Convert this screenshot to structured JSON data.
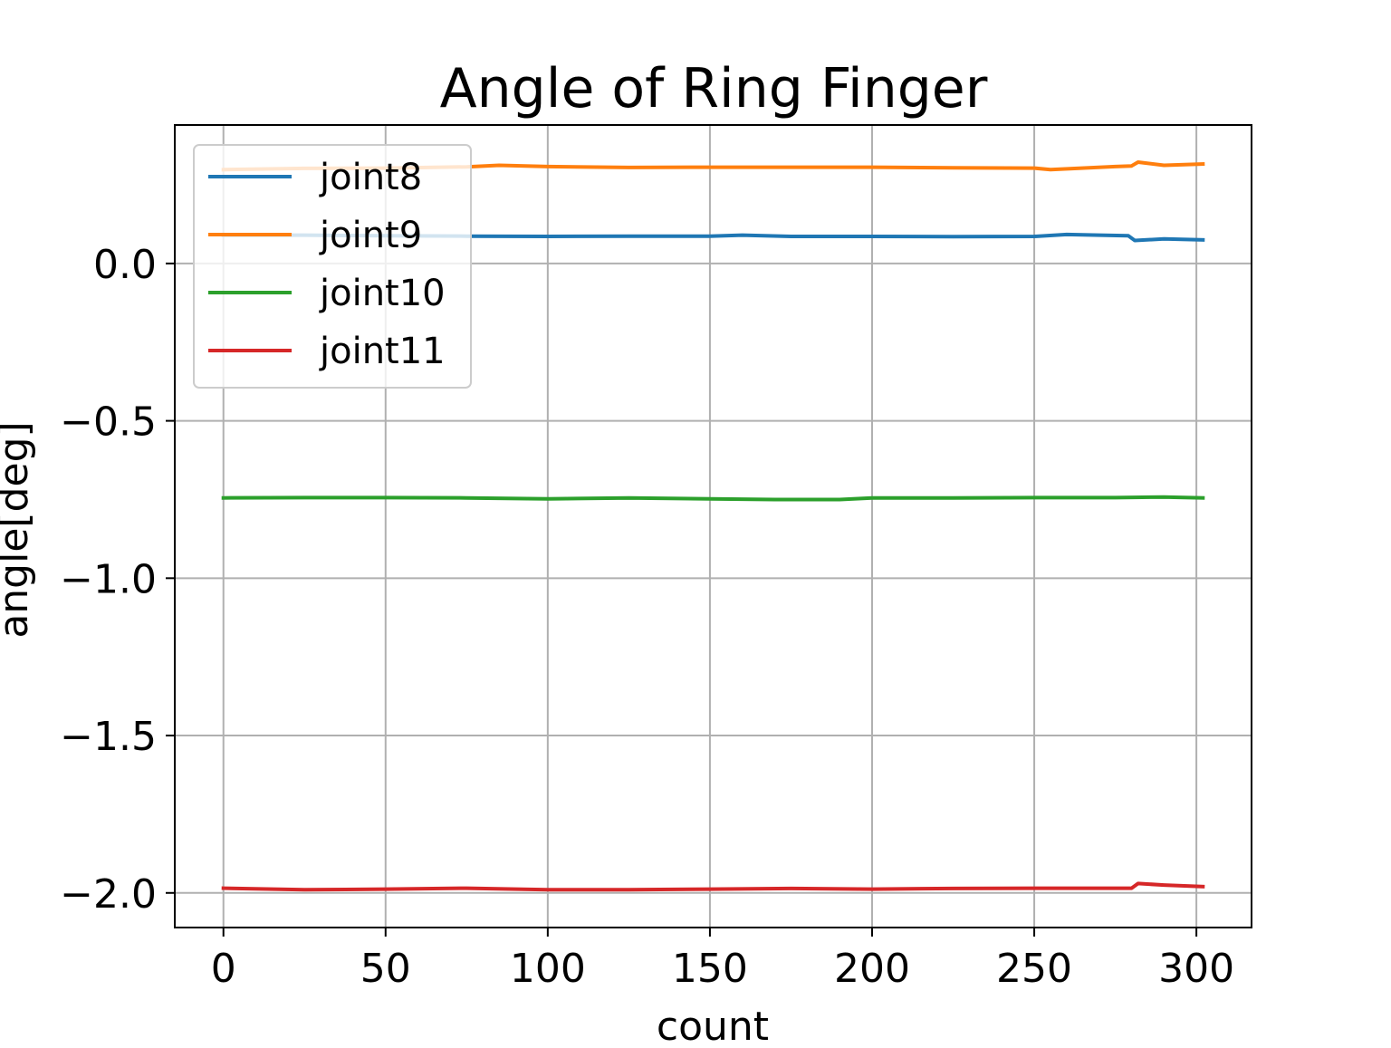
{
  "chart_data": {
    "type": "line",
    "title": "Angle of Ring Finger",
    "xlabel": "count",
    "ylabel": "angle[deg]",
    "xlim": [
      -15,
      317
    ],
    "ylim": [
      -2.11,
      0.44
    ],
    "xticks": [
      0,
      50,
      100,
      150,
      200,
      250,
      300
    ],
    "xtick_labels": [
      "0",
      "50",
      "100",
      "150",
      "200",
      "250",
      "300"
    ],
    "yticks": [
      0.0,
      -0.5,
      -1.0,
      -1.5,
      -2.0
    ],
    "ytick_labels": [
      "0.0",
      "−0.5",
      "−1.0",
      "−1.5",
      "−2.0"
    ],
    "grid": true,
    "legend_position": "upper-left",
    "series": [
      {
        "name": "joint8",
        "color": "#1f77b4",
        "x": [
          0,
          25,
          50,
          75,
          100,
          125,
          150,
          160,
          175,
          200,
          225,
          250,
          260,
          270,
          279,
          281,
          290,
          302
        ],
        "y": [
          0.09,
          0.09,
          0.088,
          0.087,
          0.086,
          0.087,
          0.087,
          0.09,
          0.086,
          0.086,
          0.085,
          0.086,
          0.092,
          0.09,
          0.088,
          0.073,
          0.078,
          0.075
        ]
      },
      {
        "name": "joint9",
        "color": "#ff7f0e",
        "x": [
          0,
          25,
          50,
          75,
          85,
          100,
          125,
          150,
          175,
          200,
          225,
          250,
          255,
          275,
          280,
          282,
          290,
          302
        ],
        "y": [
          0.298,
          0.302,
          0.303,
          0.307,
          0.312,
          0.308,
          0.305,
          0.306,
          0.306,
          0.306,
          0.304,
          0.303,
          0.298,
          0.308,
          0.31,
          0.322,
          0.312,
          0.316
        ]
      },
      {
        "name": "joint10",
        "color": "#2ca02c",
        "x": [
          0,
          25,
          50,
          75,
          100,
          125,
          150,
          170,
          190,
          200,
          225,
          250,
          275,
          290,
          302
        ],
        "y": [
          -0.745,
          -0.744,
          -0.744,
          -0.745,
          -0.748,
          -0.745,
          -0.748,
          -0.75,
          -0.75,
          -0.745,
          -0.745,
          -0.744,
          -0.744,
          -0.742,
          -0.745
        ]
      },
      {
        "name": "joint11",
        "color": "#d62728",
        "x": [
          0,
          25,
          50,
          75,
          100,
          125,
          150,
          175,
          200,
          225,
          250,
          270,
          280,
          282,
          290,
          302
        ],
        "y": [
          -1.985,
          -1.99,
          -1.988,
          -1.985,
          -1.99,
          -1.99,
          -1.988,
          -1.986,
          -1.988,
          -1.986,
          -1.985,
          -1.985,
          -1.985,
          -1.97,
          -1.975,
          -1.98
        ]
      }
    ]
  }
}
